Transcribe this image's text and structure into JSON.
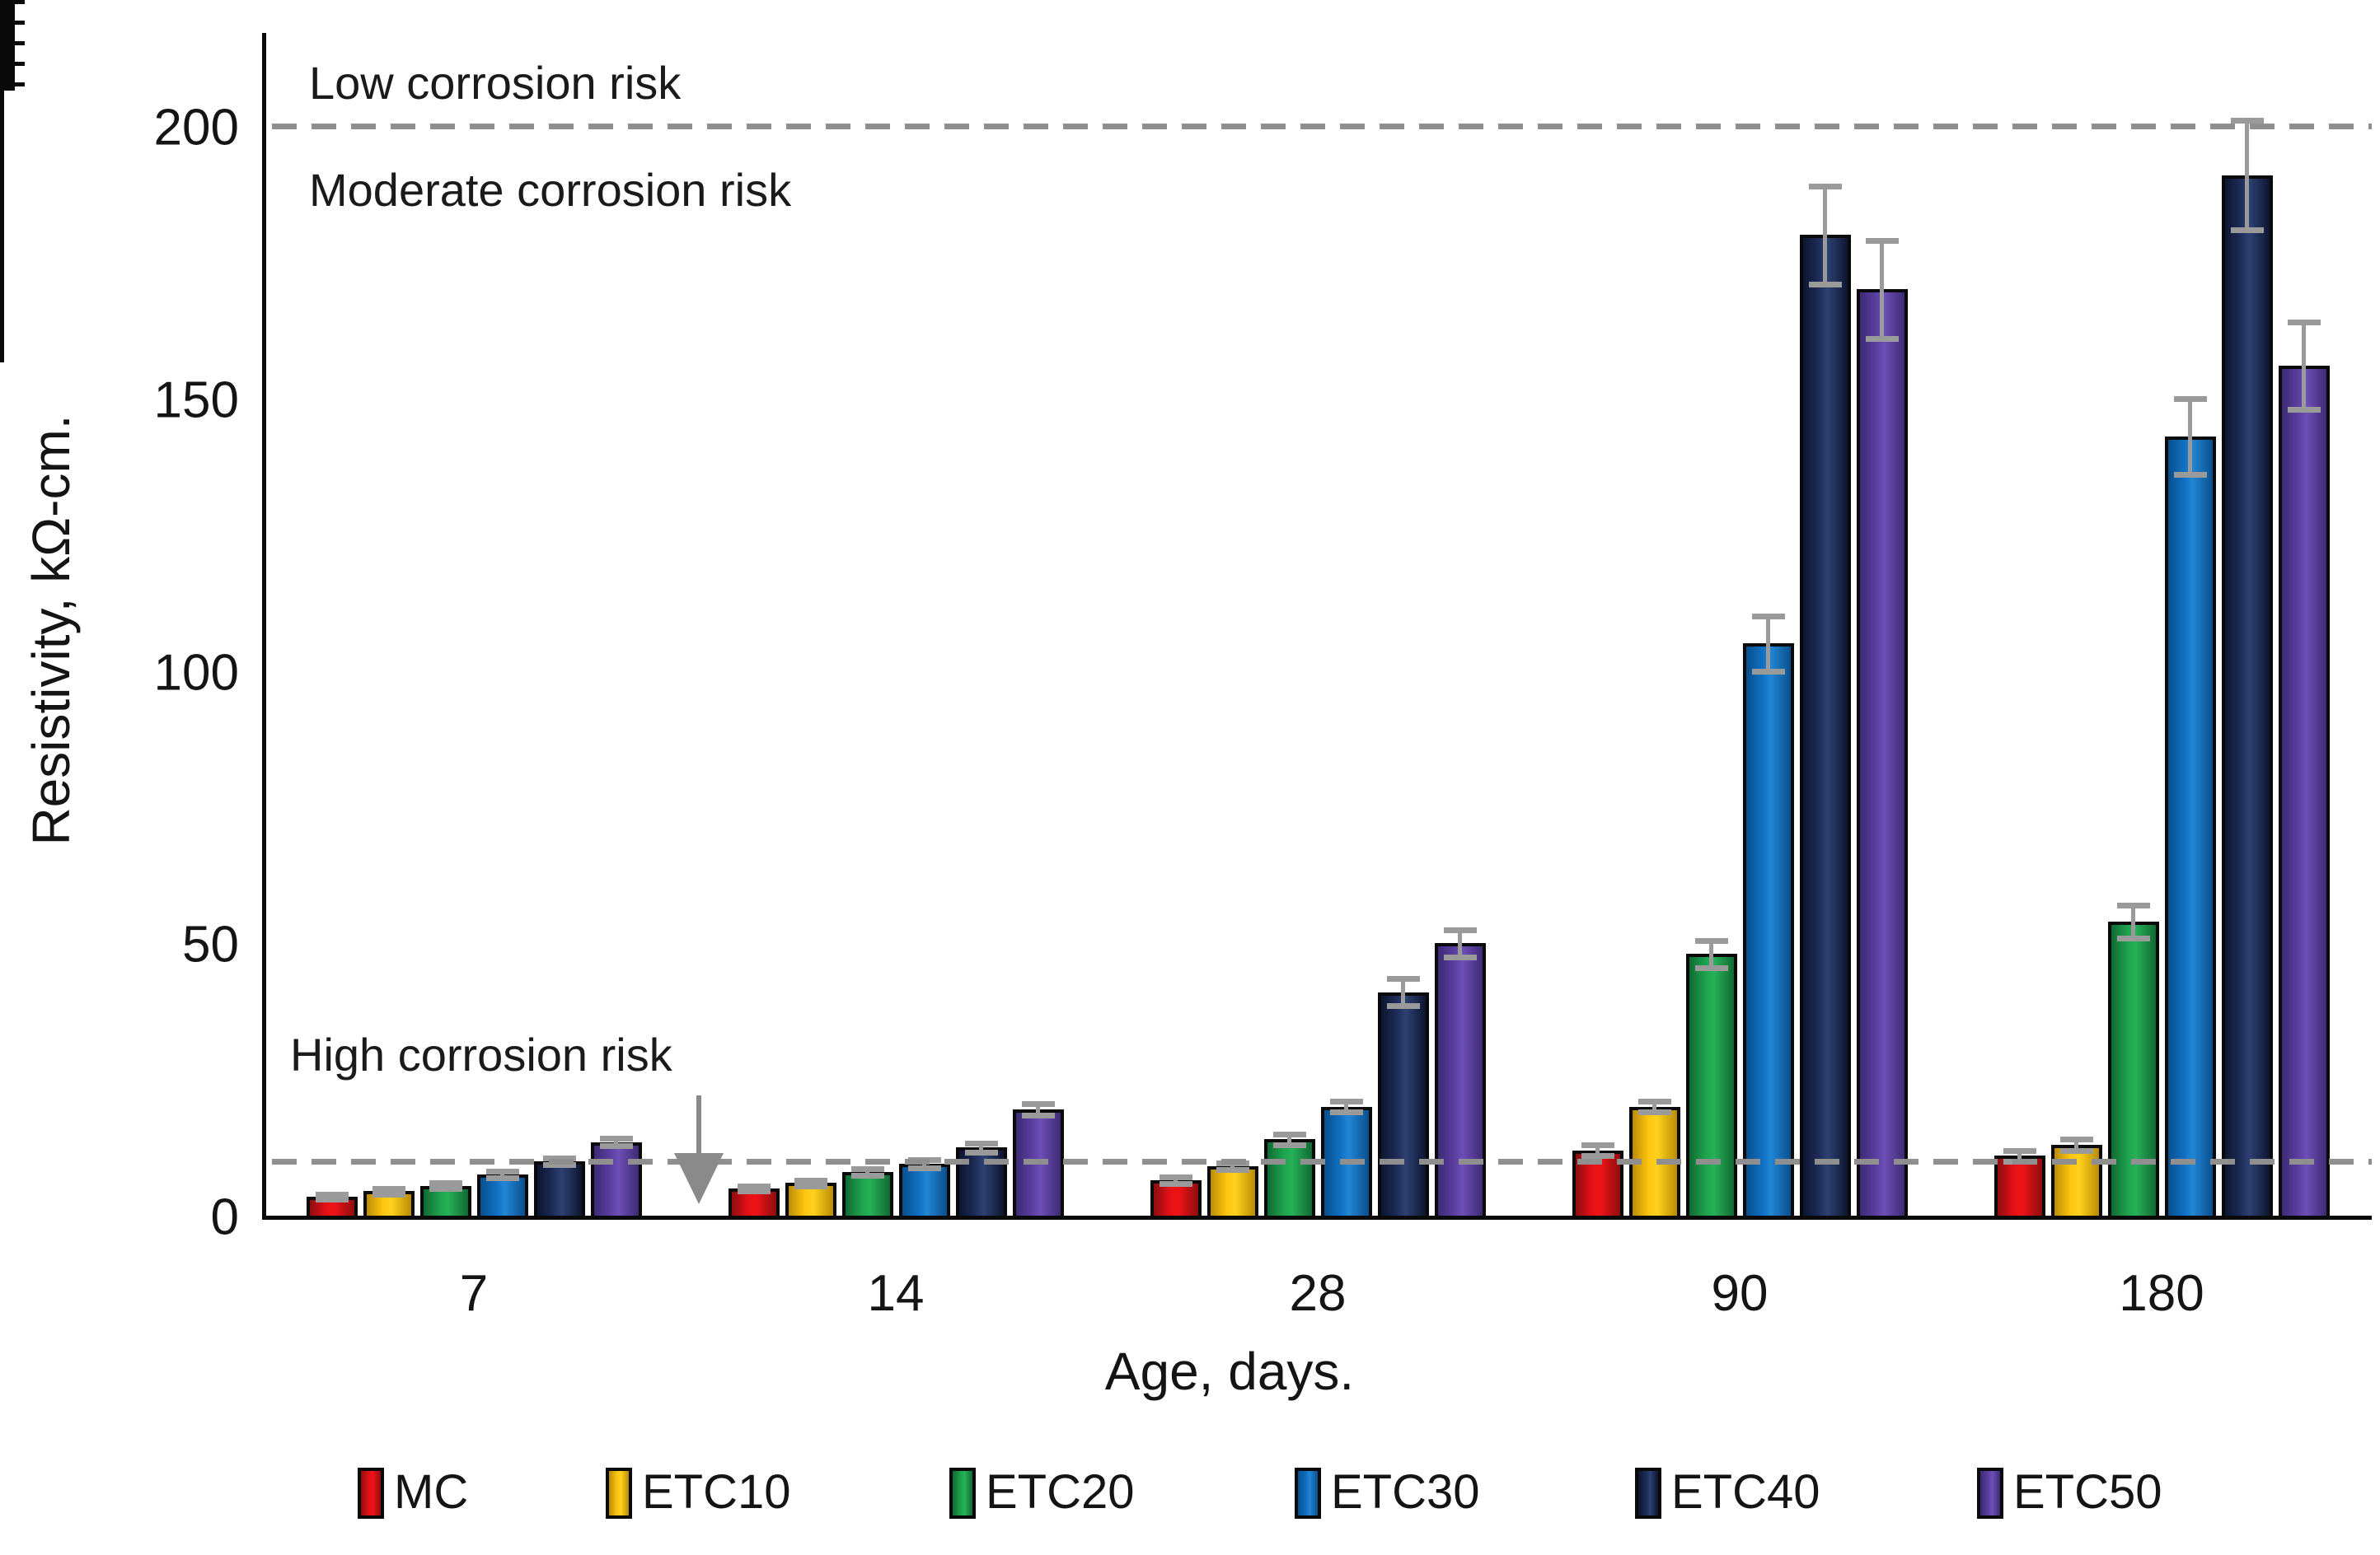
{
  "figure": {
    "y_axis_label": "Resistivity,  kΩ-cm.",
    "x_axis_label": "Age, days.",
    "annotations": {
      "low": "Low corrosion risk",
      "moderate": "Moderate corrosion risk",
      "high": "High corrosion risk"
    }
  },
  "chart_data": {
    "type": "bar",
    "title": "",
    "xlabel": "Age, days.",
    "ylabel": "Resistivity,  kΩ-cm.",
    "categories": [
      "7",
      "14",
      "28",
      "90",
      "180"
    ],
    "ylim": [
      0,
      215
    ],
    "ytick_labels": [
      "0",
      "50",
      "100",
      "150",
      "200"
    ],
    "yticks_major": [
      0,
      50,
      100,
      150,
      200
    ],
    "ytick_minor_step": 10,
    "grid": false,
    "legend_position": "bottom",
    "threshold_lines": [
      {
        "value": 200,
        "label_above": "Low corrosion risk",
        "label_below": "Moderate corrosion risk",
        "color": "#8f8f8f",
        "style": "dashed"
      },
      {
        "value": 10,
        "label_above": "High corrosion risk",
        "color": "#8f8f8f",
        "style": "dashed"
      }
    ],
    "series": [
      {
        "name": "MC",
        "color": "#e11117",
        "color_dark": "#8e0d10",
        "color_light": "#f01215",
        "values": [
          3.5,
          5,
          6.5,
          12,
          11
        ],
        "errors": [
          0.5,
          0.5,
          0.6,
          1,
          1
        ]
      },
      {
        "name": "ETC10",
        "color": "#fdc40d",
        "color_dark": "#b98c07",
        "color_light": "#ffd21c",
        "values": [
          4.5,
          6,
          9,
          20,
          13
        ],
        "errors": [
          0.5,
          0.5,
          0.6,
          1,
          1
        ]
      },
      {
        "name": "ETC20",
        "color": "#1da14c",
        "color_dark": "#0f6b33",
        "color_light": "#27b159",
        "values": [
          5.5,
          8,
          14,
          48,
          54
        ],
        "errors": [
          0.5,
          0.6,
          1,
          2.5,
          3
        ]
      },
      {
        "name": "ETC30",
        "color": "#0e6fc0",
        "color_dark": "#0a4f8d",
        "color_light": "#2186d6",
        "values": [
          7.5,
          9.5,
          20,
          105,
          143
        ],
        "errors": [
          0.6,
          0.8,
          1,
          5,
          7
        ]
      },
      {
        "name": "ETC40",
        "color": "#1d2c58",
        "color_dark": "#0d1530",
        "color_light": "#2d4173",
        "values": [
          10,
          12.5,
          41,
          180,
          191
        ],
        "errors": [
          0.6,
          0.8,
          2.5,
          9,
          10
        ]
      },
      {
        "name": "ETC50",
        "color": "#5a3da0",
        "color_dark": "#3d2a74",
        "color_light": "#6f4fb8",
        "values": [
          13.5,
          19.5,
          50,
          170,
          156
        ],
        "errors": [
          0.7,
          1,
          2.5,
          9,
          8
        ]
      }
    ]
  },
  "legend": {
    "items": [
      "MC",
      "ETC10",
      "ETC20",
      "ETC30",
      "ETC40",
      "ETC50"
    ]
  }
}
